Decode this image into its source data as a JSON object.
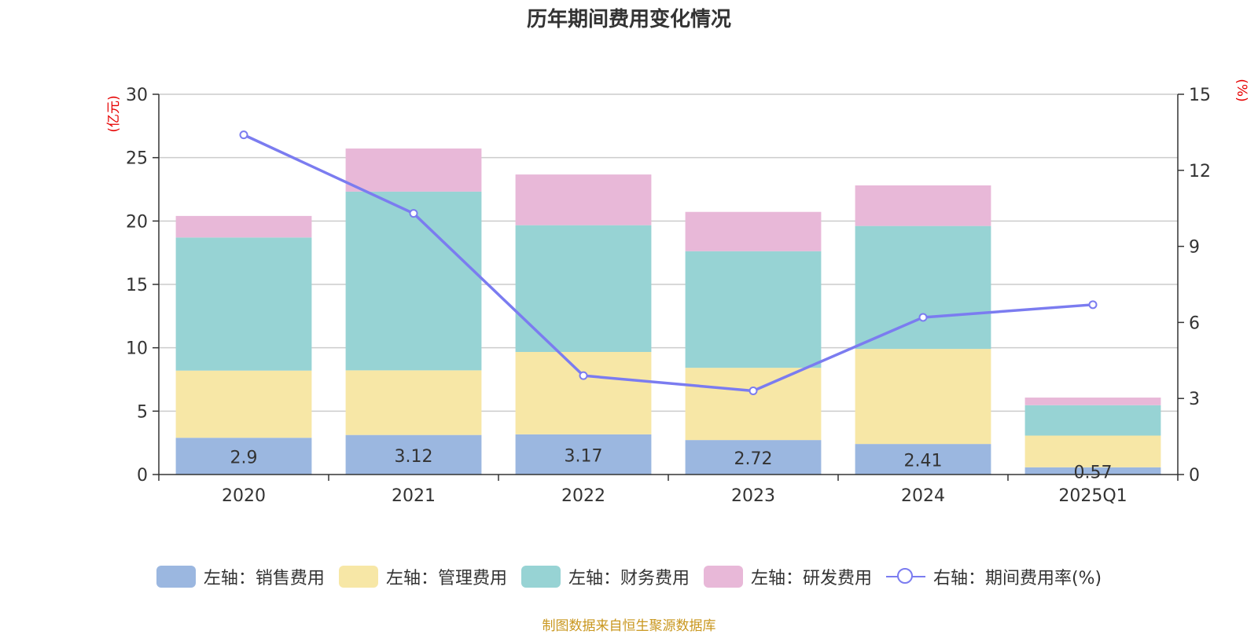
{
  "title": "历年期间费用变化情况",
  "source": "制图数据来自恒生聚源数据库",
  "colors": {
    "sales": "#9bb7e0",
    "admin": "#f7e7a6",
    "finance": "#97d3d4",
    "rd": "#e8b8d8",
    "rate": "#7b7cf0",
    "axis_unit": "#e60000",
    "source": "#c9971f",
    "grid": "#cccccc",
    "text": "#333333"
  },
  "legend": [
    {
      "label": "左轴：销售费用",
      "key": "sales"
    },
    {
      "label": "左轴：管理费用",
      "key": "admin"
    },
    {
      "label": "左轴：财务费用",
      "key": "finance"
    },
    {
      "label": "左轴：研发费用",
      "key": "rd"
    },
    {
      "label": "右轴：期间费用率(%)",
      "key": "rate"
    }
  ],
  "chart_data": {
    "type": "bar",
    "stacked": true,
    "title": "历年期间费用变化情况",
    "categories": [
      "2020",
      "2021",
      "2022",
      "2023",
      "2024",
      "2025Q1"
    ],
    "y_left": {
      "unit": "(亿元)",
      "ylim": [
        0,
        30
      ],
      "ticks": [
        0,
        5,
        10,
        15,
        20,
        25,
        30
      ]
    },
    "y_right": {
      "unit": "(%)",
      "ylim": [
        0,
        15
      ],
      "ticks": [
        0,
        3,
        6,
        9,
        12,
        15
      ]
    },
    "series": [
      {
        "name": "左轴：销售费用",
        "key": "sales",
        "axis": "left",
        "values": [
          2.9,
          3.12,
          3.17,
          2.72,
          2.41,
          0.57
        ],
        "labels": [
          "2.9",
          "3.12",
          "3.17",
          "2.72",
          "2.41",
          "0.57"
        ]
      },
      {
        "name": "左轴：管理费用",
        "key": "admin",
        "axis": "left",
        "values": [
          5.3,
          5.1,
          6.5,
          5.7,
          7.5,
          2.5
        ]
      },
      {
        "name": "左轴：财务费用",
        "key": "finance",
        "axis": "left",
        "values": [
          10.5,
          14.1,
          10.0,
          9.2,
          9.7,
          2.4
        ]
      },
      {
        "name": "左轴：研发费用",
        "key": "rd",
        "axis": "left",
        "values": [
          1.7,
          3.4,
          4.0,
          3.1,
          3.2,
          0.6
        ]
      },
      {
        "name": "右轴：期间费用率(%)",
        "key": "rate",
        "type": "line",
        "axis": "right",
        "values": [
          13.4,
          10.3,
          3.9,
          3.3,
          6.2,
          6.7
        ]
      }
    ],
    "grid": true,
    "legend_position": "bottom"
  }
}
